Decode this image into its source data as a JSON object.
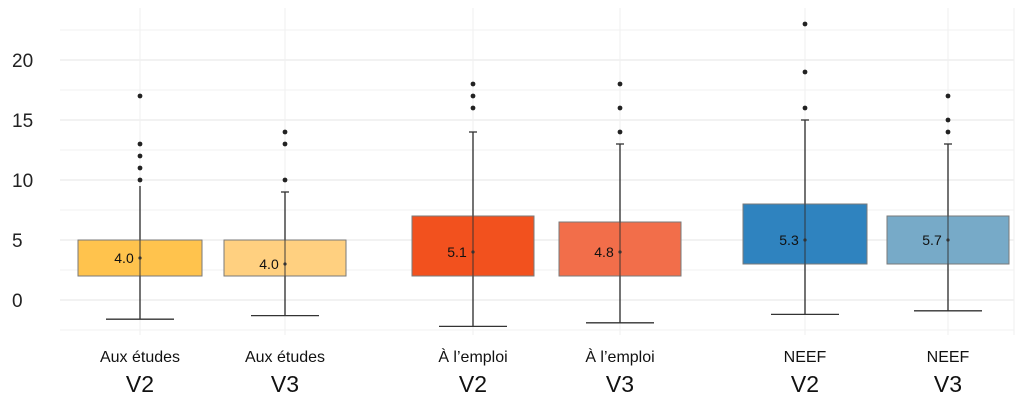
{
  "chart_data": {
    "type": "box",
    "title": "",
    "xlabel": "",
    "ylabel": "",
    "ylim": [
      -3,
      24
    ],
    "yticks": [
      0,
      5,
      10,
      15,
      20
    ],
    "grid": true,
    "boxes": [
      {
        "category": "Aux études",
        "version": "V2",
        "q1": 2,
        "q3": 5,
        "median": 3.5,
        "whisker_low": -1.6,
        "whisker_high": 9.5,
        "cap_high": false,
        "outliers": [
          10,
          11,
          12,
          13,
          17
        ],
        "label": "4.0",
        "color": "#FFC34D"
      },
      {
        "category": "Aux études",
        "version": "V3",
        "q1": 2,
        "q3": 5,
        "median": 3,
        "whisker_low": -1.3,
        "whisker_high": 9,
        "cap_high": true,
        "outliers": [
          10,
          13,
          14
        ],
        "label": "4.0",
        "color": "#FFD080"
      },
      {
        "category": "À l’emploi",
        "version": "V2",
        "q1": 2,
        "q3": 7,
        "median": 4,
        "whisker_low": -2.2,
        "whisker_high": 14,
        "cap_high": true,
        "outliers": [
          16,
          17,
          18
        ],
        "label": "5.1",
        "color": "#F2511E"
      },
      {
        "category": "À l’emploi",
        "version": "V3",
        "q1": 2,
        "q3": 6.5,
        "median": 4,
        "whisker_low": -1.9,
        "whisker_high": 13,
        "cap_high": true,
        "outliers": [
          14,
          16,
          18
        ],
        "label": "4.8",
        "color": "#F26E4A"
      },
      {
        "category": "NEEF",
        "version": "V2",
        "q1": 3,
        "q3": 8,
        "median": 5,
        "whisker_low": -1.2,
        "whisker_high": 15,
        "cap_high": true,
        "outliers": [
          16,
          19,
          23
        ],
        "label": "5.3",
        "color": "#2F83BF"
      },
      {
        "category": "NEEF",
        "version": "V3",
        "q1": 3,
        "q3": 7,
        "median": 5,
        "whisker_low": -0.9,
        "whisker_high": 13,
        "cap_high": true,
        "outliers": [
          14,
          15,
          17
        ],
        "label": "5.7",
        "color": "#77AAC8"
      }
    ]
  }
}
